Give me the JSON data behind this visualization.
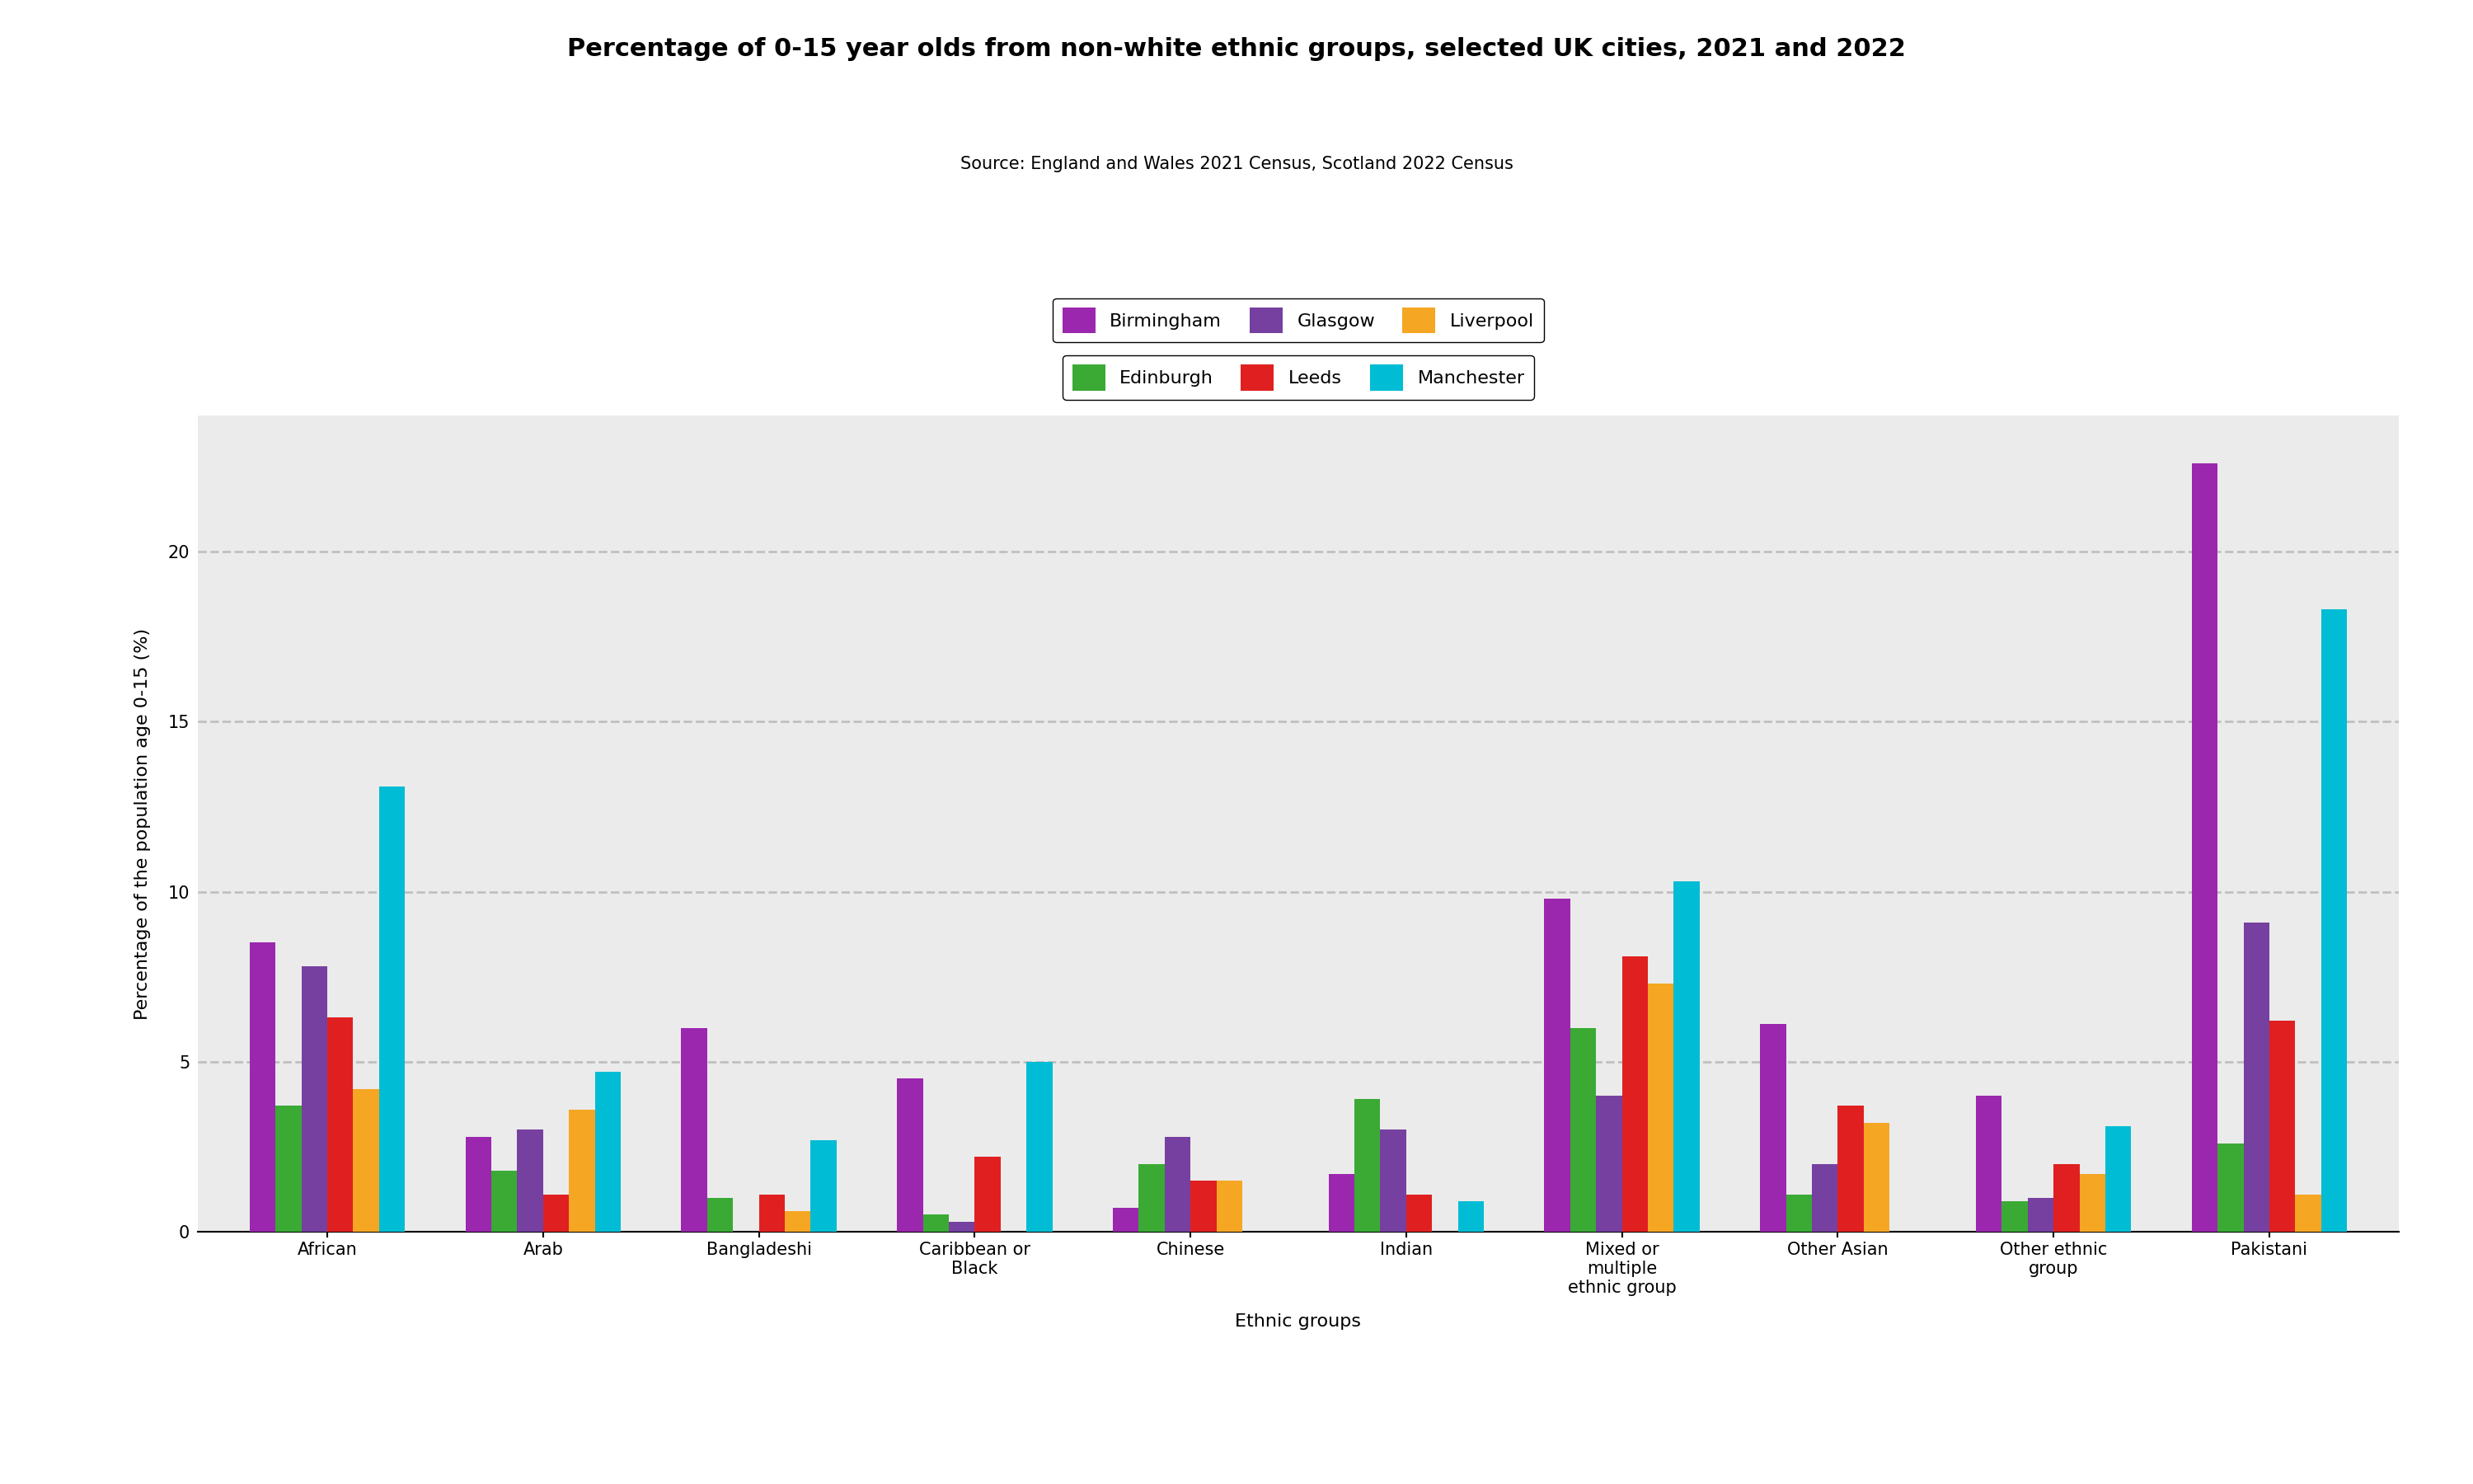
{
  "title": "Percentage of 0-15 year olds from non-white ethnic groups, selected UK cities, 2021 and 2022",
  "subtitle": "Source: England and Wales 2021 Census, Scotland 2022 Census",
  "xlabel": "Ethnic groups",
  "ylabel": "Percentage of the population age 0-15 (%)",
  "ylim": [
    0,
    24
  ],
  "yticks": [
    0,
    5,
    10,
    15,
    20
  ],
  "categories": [
    "African",
    "Arab",
    "Bangladeshi",
    "Caribbean or\nBlack",
    "Chinese",
    "Indian",
    "Mixed or\nmultiple\nethnic group",
    "Other Asian",
    "Other ethnic\ngroup",
    "Pakistani"
  ],
  "cities": [
    "Birmingham",
    "Edinburgh",
    "Glasgow",
    "Leeds",
    "Liverpool",
    "Manchester"
  ],
  "colors": [
    "#9b27af",
    "#3aaa35",
    "#7640a0",
    "#e02020",
    "#f5a623",
    "#00bcd4"
  ],
  "legend_row1": [
    "Birmingham",
    "Glasgow",
    "Liverpool"
  ],
  "legend_row2": [
    "Edinburgh",
    "Leeds",
    "Manchester"
  ],
  "legend_row1_idx": [
    0,
    2,
    4
  ],
  "legend_row2_idx": [
    1,
    3,
    5
  ],
  "data": {
    "African": [
      8.5,
      3.7,
      7.8,
      6.3,
      4.2,
      13.1
    ],
    "Arab": [
      2.8,
      1.8,
      3.0,
      1.1,
      3.6,
      4.7
    ],
    "Bangladeshi": [
      6.0,
      1.0,
      0.0,
      1.1,
      0.6,
      2.7
    ],
    "Caribbean or\nBlack": [
      4.5,
      0.5,
      0.3,
      2.2,
      0.0,
      5.0
    ],
    "Chinese": [
      0.7,
      2.0,
      2.8,
      1.5,
      1.5,
      0.0
    ],
    "Indian": [
      1.7,
      3.9,
      3.0,
      1.1,
      0.0,
      0.9
    ],
    "Mixed or\nmultiple\nethnic group": [
      9.8,
      6.0,
      4.0,
      8.1,
      7.3,
      10.3
    ],
    "Other Asian": [
      6.1,
      1.1,
      2.0,
      3.7,
      3.2,
      0.0
    ],
    "Other ethnic\ngroup": [
      4.0,
      0.9,
      1.0,
      2.0,
      1.7,
      3.1
    ],
    "Pakistani": [
      22.6,
      2.6,
      9.1,
      6.2,
      1.1,
      18.3
    ]
  },
  "background_color": "#ebebeb",
  "title_fontsize": 22,
  "subtitle_fontsize": 15,
  "axis_label_fontsize": 16,
  "tick_fontsize": 15,
  "legend_fontsize": 16,
  "bar_width": 0.12
}
